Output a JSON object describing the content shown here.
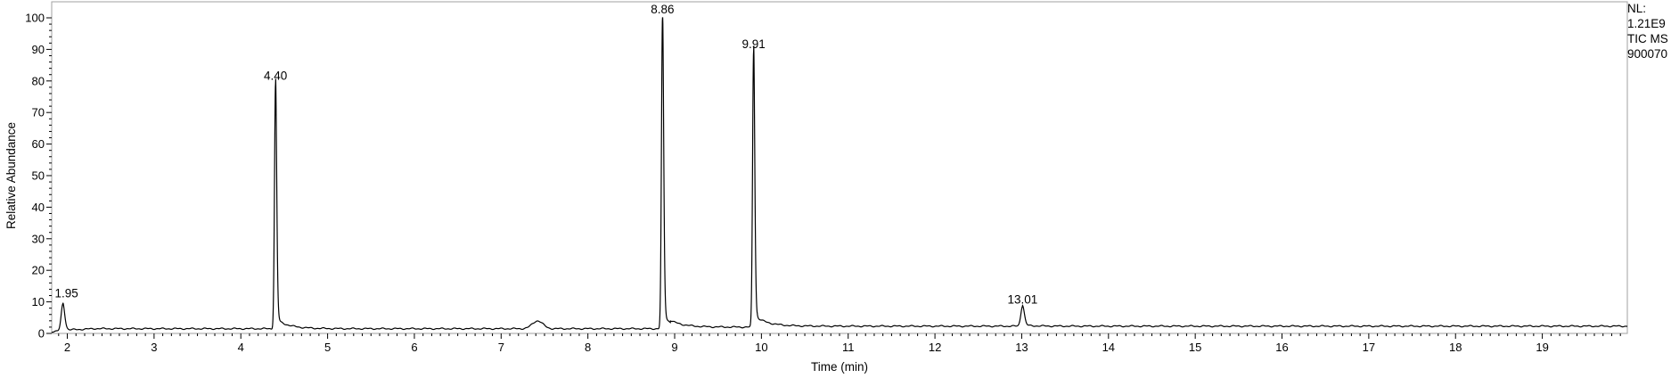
{
  "chart_data": {
    "type": "line",
    "title": "",
    "xlabel": "Time (min)",
    "ylabel": "Relative Abundance",
    "xlim": [
      1.82,
      19.98
    ],
    "ylim": [
      0,
      100
    ],
    "x_ticks": [
      2,
      3,
      4,
      5,
      6,
      7,
      8,
      9,
      10,
      11,
      12,
      13,
      14,
      15,
      16,
      17,
      18,
      19
    ],
    "x_tick_labels": [
      "2",
      "3",
      "4",
      "5",
      "6",
      "7",
      "8",
      "9",
      "10",
      "11",
      "12",
      "13",
      "14",
      "15",
      "16",
      "17",
      "18",
      "19"
    ],
    "y_ticks": [
      0,
      10,
      20,
      30,
      40,
      50,
      60,
      70,
      80,
      90,
      100
    ],
    "y_tick_labels": [
      "0",
      "10",
      "20",
      "30",
      "40",
      "50",
      "60",
      "70",
      "80",
      "90",
      "100"
    ],
    "baseline": 1.5,
    "grid": false,
    "series": [
      {
        "color": "#000000",
        "peaks": [
          {
            "x": 1.95,
            "y": 10,
            "label": "1.95"
          },
          {
            "x": 4.4,
            "y": 79,
            "label": "4.40"
          },
          {
            "x": 8.86,
            "y": 100,
            "label": "8.86"
          },
          {
            "x": 9.91,
            "y": 89,
            "label": "9.91"
          },
          {
            "x": 13.01,
            "y": 8,
            "label": "13.01"
          }
        ],
        "minor_peaks": [
          {
            "x": 7.42,
            "y": 4
          }
        ]
      }
    ]
  },
  "info": {
    "nl_label": "NL:",
    "nl_value": "1.21E9",
    "scan_filter": "TIC  MS",
    "file_name": "900070"
  }
}
